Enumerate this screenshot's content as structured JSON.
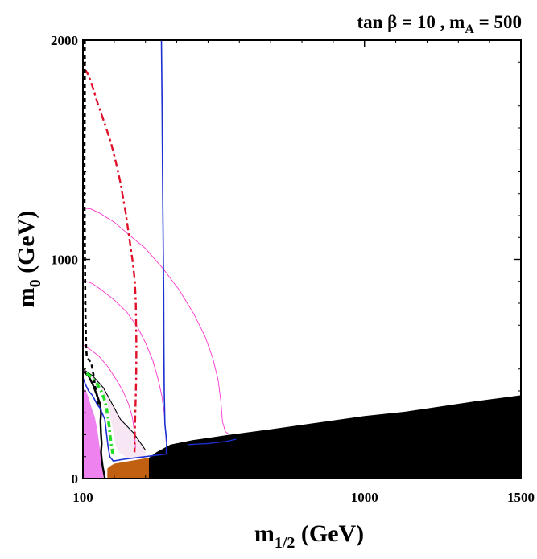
{
  "chart_data": {
    "type": "contour",
    "title": {
      "main": "tan β = 10 , m",
      "sub": "A",
      "tail": " = 500"
    },
    "xlabel": {
      "main": "m",
      "sub": "1/2",
      "tail": " (GeV)"
    },
    "ylabel": {
      "main": "m",
      "sub": "0",
      "tail": " (GeV)"
    },
    "xlim": [
      100,
      1500
    ],
    "ylim": [
      0,
      2000
    ],
    "x_ticks": [
      {
        "value": 100,
        "label": "100"
      },
      {
        "value": 1000,
        "label": "1000"
      },
      {
        "value": 1500,
        "label": "1500"
      }
    ],
    "y_ticks": [
      {
        "value": 0,
        "label": "0"
      },
      {
        "value": 1000,
        "label": "1000"
      },
      {
        "value": 2000,
        "label": "2000"
      }
    ],
    "x_minor_step": 100,
    "y_minor_step": 100,
    "colors": {
      "charged_lsp": "#000000",
      "bsg_excluded": "#c06010",
      "g_minus_2": "#ee82ee",
      "g_minus_2_light": "#f7e6f3",
      "dark_matter_strip": "#1c2fd0",
      "higgs_contour": "#ff33cc",
      "chargino_limit": "#000000",
      "selectron_limit": "#e0102a",
      "higgs_limit": "#22dd22"
    },
    "regions": [
      {
        "name": "charged-lsp",
        "color": "charged_lsp",
        "points": [
          [
            311,
            0
          ],
          [
            1500,
            0
          ],
          [
            1500,
            380
          ],
          [
            1350,
            352
          ],
          [
            1130,
            305
          ],
          [
            1000,
            285
          ],
          [
            850,
            255
          ],
          [
            700,
            225
          ],
          [
            560,
            198
          ],
          [
            450,
            175
          ],
          [
            380,
            155
          ],
          [
            335,
            120
          ],
          [
            311,
            95
          ]
        ]
      },
      {
        "name": "bsg-excluded",
        "color": "bsg_excluded",
        "points": [
          [
            178,
            0
          ],
          [
            311,
            0
          ],
          [
            311,
            95
          ],
          [
            200,
            68
          ],
          [
            185,
            55
          ],
          [
            178,
            45
          ]
        ]
      },
      {
        "name": "g-2-favoured-light",
        "color": "g_minus_2_light",
        "points": [
          [
            100,
            500
          ],
          [
            130,
            470
          ],
          [
            165,
            415
          ],
          [
            192,
            345
          ],
          [
            220,
            270
          ],
          [
            262,
            208
          ],
          [
            300,
            130
          ],
          [
            300,
            100
          ],
          [
            250,
            92
          ],
          [
            240,
            95
          ],
          [
            215,
            120
          ],
          [
            205,
            150
          ],
          [
            190,
            265
          ],
          [
            175,
            355
          ],
          [
            155,
            420
          ],
          [
            120,
            470
          ],
          [
            100,
            480
          ]
        ]
      },
      {
        "name": "g-2-favoured-dark",
        "color": "g_minus_2",
        "points": [
          [
            100,
            0
          ],
          [
            165,
            0
          ],
          [
            165,
            25
          ],
          [
            158,
            60
          ],
          [
            156,
            110
          ],
          [
            152,
            160
          ],
          [
            145,
            230
          ],
          [
            138,
            280
          ],
          [
            126,
            330
          ],
          [
            118,
            370
          ],
          [
            110,
            400
          ],
          [
            100,
            410
          ]
        ]
      }
    ],
    "series": [
      {
        "name": "higgs-mass-contour-1",
        "color": "higgs_contour",
        "width": 0.9,
        "dash": "",
        "points": [
          [
            100,
            1235
          ],
          [
            126,
            1230
          ],
          [
            155,
            1210
          ],
          [
            200,
            1170
          ],
          [
            245,
            1115
          ],
          [
            300,
            1050
          ],
          [
            355,
            960
          ],
          [
            408,
            860
          ],
          [
            455,
            750
          ],
          [
            490,
            650
          ],
          [
            515,
            550
          ],
          [
            532,
            450
          ],
          [
            541,
            350
          ],
          [
            546,
            260
          ],
          [
            555,
            215
          ],
          [
            568,
            200
          ]
        ]
      },
      {
        "name": "higgs-mass-contour-2",
        "color": "higgs_contour",
        "width": 0.9,
        "dash": "",
        "points": [
          [
            100,
            905
          ],
          [
            130,
            890
          ],
          [
            160,
            860
          ],
          [
            200,
            815
          ],
          [
            240,
            760
          ],
          [
            275,
            690
          ],
          [
            300,
            620
          ],
          [
            323,
            540
          ],
          [
            339,
            460
          ],
          [
            352,
            380
          ],
          [
            360,
            300
          ],
          [
            364,
            220
          ],
          [
            366,
            165
          ]
        ]
      },
      {
        "name": "higgs-mass-contour-3",
        "color": "higgs_contour",
        "width": 0.9,
        "dash": "",
        "points": [
          [
            100,
            610
          ],
          [
            122,
            590
          ],
          [
            150,
            560
          ],
          [
            180,
            510
          ],
          [
            205,
            455
          ],
          [
            228,
            400
          ],
          [
            246,
            340
          ],
          [
            258,
            280
          ],
          [
            264,
            220
          ],
          [
            267,
            165
          ],
          [
            268,
            140
          ]
        ]
      },
      {
        "name": "g-2-boundary-outer",
        "color": "chargino_limit",
        "width": 1.1,
        "dash": "",
        "points": [
          [
            100,
            500
          ],
          [
            130,
            470
          ],
          [
            165,
            415
          ],
          [
            192,
            345
          ],
          [
            220,
            270
          ],
          [
            262,
            208
          ],
          [
            300,
            130
          ]
        ]
      },
      {
        "name": "lsp-boundary",
        "color": "chargino_limit",
        "width": 2.4,
        "dash": "",
        "points": [
          [
            100,
            490
          ],
          [
            108,
            480
          ],
          [
            118,
            468
          ],
          [
            132,
            428
          ],
          [
            145,
            380
          ],
          [
            155,
            340
          ],
          [
            158,
            300
          ],
          [
            156,
            260
          ],
          [
            158,
            200
          ],
          [
            160,
            160
          ],
          [
            158,
            120
          ],
          [
            160,
            90
          ],
          [
            163,
            55
          ],
          [
            168,
            20
          ],
          [
            170,
            0
          ]
        ]
      },
      {
        "name": "dark-matter-strip",
        "color": "dark_matter_strip",
        "width": 1.6,
        "dash": "",
        "points": [
          [
            351,
            2000
          ],
          [
            353,
            1700
          ],
          [
            355,
            1300
          ],
          [
            357,
            1000
          ],
          [
            358,
            850
          ],
          [
            359,
            600
          ],
          [
            360,
            400
          ],
          [
            362,
            250
          ],
          [
            368,
            165
          ],
          [
            366,
            112
          ],
          [
            298,
            100
          ],
          [
            230,
            88
          ],
          [
            197,
            80
          ],
          [
            186,
            100
          ],
          [
            180,
            150
          ],
          [
            170,
            270
          ],
          [
            155,
            320
          ],
          [
            145,
            340
          ],
          [
            130,
            380
          ],
          [
            118,
            400
          ],
          [
            108,
            430
          ],
          [
            100,
            460
          ]
        ]
      },
      {
        "name": "dark-matter-coannihilation",
        "color": "dark_matter_strip",
        "width": 1.4,
        "dash": "",
        "points": [
          [
            435,
            155
          ],
          [
            500,
            160
          ],
          [
            560,
            170
          ],
          [
            590,
            180
          ]
        ]
      },
      {
        "name": "selectron-limit",
        "color": "selectron_limit",
        "width": 2.4,
        "dash": "9 4 3 4",
        "points": [
          [
            105,
            1850
          ],
          [
            110,
            1860
          ],
          [
            118,
            1840
          ],
          [
            130,
            1790
          ],
          [
            150,
            1700
          ],
          [
            172,
            1610
          ],
          [
            190,
            1530
          ],
          [
            205,
            1445
          ],
          [
            220,
            1350
          ],
          [
            236,
            1220
          ],
          [
            250,
            1080
          ],
          [
            260,
            980
          ],
          [
            266,
            900
          ],
          [
            269,
            800
          ],
          [
            271,
            600
          ],
          [
            270,
            450
          ],
          [
            268,
            330
          ],
          [
            266,
            220
          ],
          [
            265,
            120
          ]
        ]
      },
      {
        "name": "chargino-limit",
        "color": "chargino_limit",
        "width": 2.6,
        "dash": "5 4",
        "points": [
          [
            106,
            2000
          ],
          [
            106,
            1700
          ],
          [
            105,
            1500
          ],
          [
            105,
            1300
          ],
          [
            106,
            1100
          ],
          [
            107,
            900
          ],
          [
            108,
            750
          ],
          [
            110,
            600
          ],
          [
            112,
            560
          ],
          [
            120,
            540
          ],
          [
            128,
            520
          ],
          [
            133,
            480
          ],
          [
            139,
            420
          ],
          [
            145,
            380
          ],
          [
            150,
            330
          ]
        ]
      },
      {
        "name": "higgs-limit",
        "color": "higgs_limit",
        "width": 3.6,
        "dash": "7 4 2 4",
        "points": [
          [
            112,
            480
          ],
          [
            130,
            460
          ],
          [
            148,
            425
          ],
          [
            160,
            395
          ],
          [
            168,
            365
          ],
          [
            175,
            325
          ],
          [
            180,
            280
          ],
          [
            184,
            240
          ],
          [
            187,
            195
          ],
          [
            191,
            150
          ],
          [
            196,
            110
          ]
        ]
      }
    ]
  }
}
